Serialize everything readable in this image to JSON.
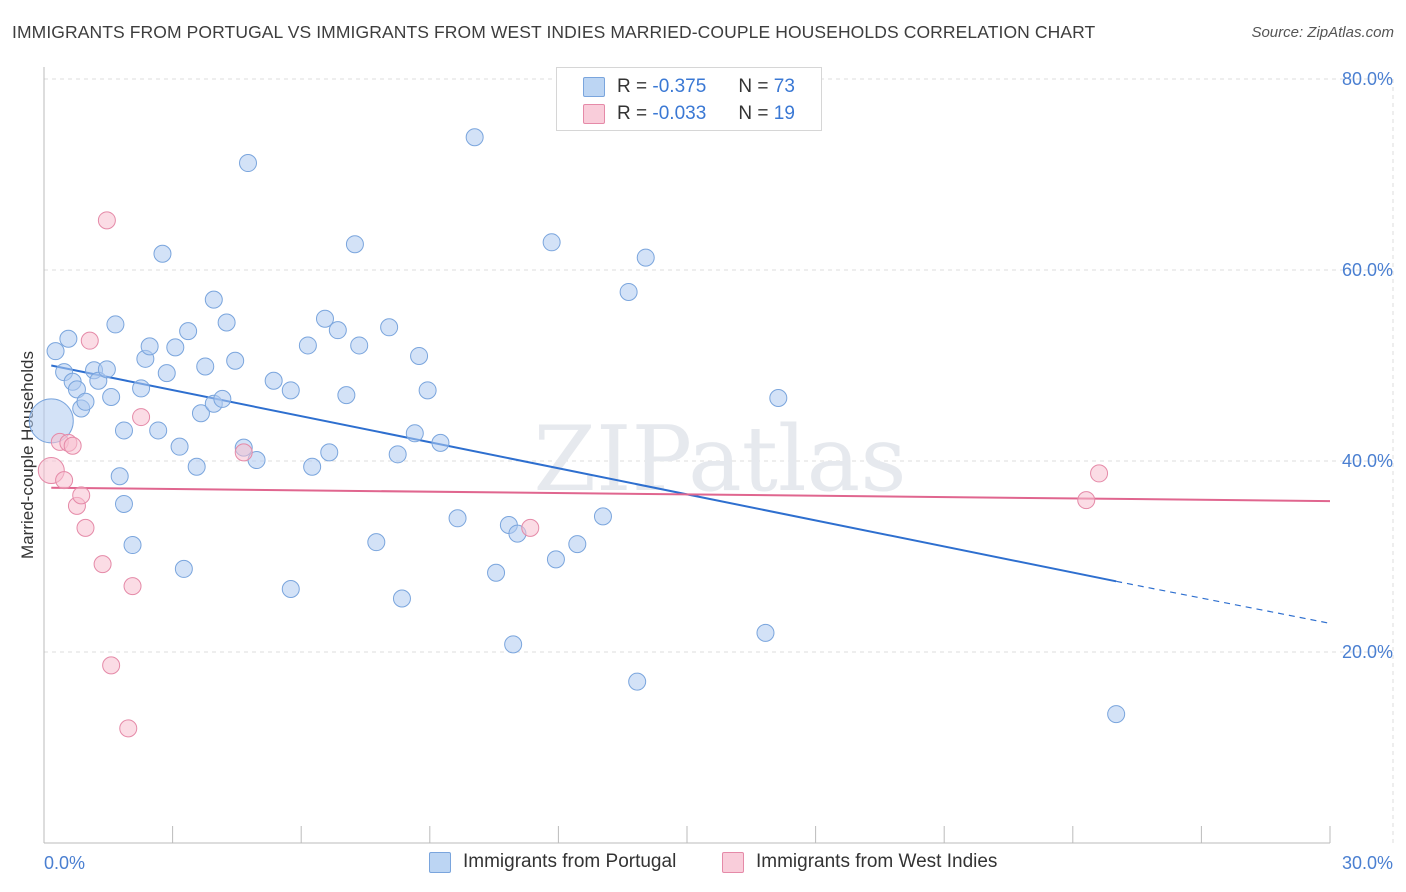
{
  "title": "IMMIGRANTS FROM PORTUGAL VS IMMIGRANTS FROM WEST INDIES MARRIED-COUPLE HOUSEHOLDS CORRELATION CHART",
  "source": "Source: ZipAtlas.com",
  "watermark": "ZIPatlas",
  "legend": {
    "rows": [
      {
        "r_label": "R =",
        "r_value": "-0.375",
        "n_label": "N =",
        "n_value": "73"
      },
      {
        "r_label": "R =",
        "r_value": "-0.033",
        "n_label": "N =",
        "n_value": "19"
      }
    ]
  },
  "bottom_legend": {
    "items": [
      {
        "label": "Immigrants from Portugal"
      },
      {
        "label": "Immigrants from West Indies"
      }
    ]
  },
  "colors": {
    "portugal_fill": "#aecbf0",
    "portugal_stroke": "#7aa5dd",
    "portugal_line": "#2e6fcf",
    "westindies_fill": "#f7bfd0",
    "westindies_stroke": "#e58aa8",
    "westindies_line": "#e0668f",
    "axis_text": "#4a7fd1",
    "grid": "#dddddd"
  },
  "chart_data": {
    "type": "scatter",
    "title": "IMMIGRANTS FROM PORTUGAL VS IMMIGRANTS FROM WEST INDIES MARRIED-COUPLE HOUSEHOLDS CORRELATION CHART",
    "xlabel": "",
    "ylabel": "Married-couple Households",
    "xlim": [
      0,
      30
    ],
    "ylim": [
      0,
      84
    ],
    "x_tick_labels": [
      "0.0%",
      "30.0%"
    ],
    "y_ticks": [
      20,
      40,
      60,
      80
    ],
    "y_tick_labels": [
      "20.0%",
      "40.0%",
      "60.0%",
      "80.0%"
    ],
    "grid": true,
    "legend_position": "top-center",
    "series": [
      {
        "name": "Immigrants from Portugal",
        "r": -0.375,
        "n": 73,
        "trend": {
          "x_start": 0.1,
          "y_start": 50.0,
          "x_solid_end": 25.0,
          "y_solid_end": 27.4,
          "x_end": 30.0,
          "y_end": 23.0
        },
        "points": [
          [
            0.2,
            51.5
          ],
          [
            0.1,
            44.2
          ],
          [
            0.4,
            49.3
          ],
          [
            0.5,
            52.8
          ],
          [
            0.6,
            48.3
          ],
          [
            0.7,
            47.5
          ],
          [
            0.8,
            45.5
          ],
          [
            0.9,
            46.2
          ],
          [
            1.1,
            49.5
          ],
          [
            1.2,
            48.4
          ],
          [
            1.4,
            49.6
          ],
          [
            1.5,
            46.7
          ],
          [
            1.6,
            54.3
          ],
          [
            1.7,
            38.4
          ],
          [
            1.8,
            35.5
          ],
          [
            1.8,
            43.2
          ],
          [
            2.0,
            31.2
          ],
          [
            2.2,
            47.6
          ],
          [
            2.3,
            50.7
          ],
          [
            2.4,
            52.0
          ],
          [
            2.6,
            43.2
          ],
          [
            2.7,
            61.7
          ],
          [
            2.8,
            49.2
          ],
          [
            3.0,
            51.9
          ],
          [
            3.1,
            41.5
          ],
          [
            3.2,
            28.7
          ],
          [
            3.3,
            53.6
          ],
          [
            3.5,
            39.4
          ],
          [
            3.6,
            45.0
          ],
          [
            3.7,
            49.9
          ],
          [
            3.9,
            46.0
          ],
          [
            3.9,
            56.9
          ],
          [
            4.1,
            46.5
          ],
          [
            4.2,
            54.5
          ],
          [
            4.4,
            50.5
          ],
          [
            4.6,
            41.4
          ],
          [
            4.7,
            71.2
          ],
          [
            4.9,
            40.1
          ],
          [
            5.3,
            48.4
          ],
          [
            5.7,
            47.4
          ],
          [
            5.7,
            26.6
          ],
          [
            6.1,
            52.1
          ],
          [
            6.2,
            39.4
          ],
          [
            6.5,
            54.9
          ],
          [
            6.6,
            40.9
          ],
          [
            6.8,
            53.7
          ],
          [
            7.0,
            46.9
          ],
          [
            7.2,
            62.7
          ],
          [
            7.3,
            52.1
          ],
          [
            7.7,
            31.5
          ],
          [
            8.0,
            54.0
          ],
          [
            8.2,
            40.7
          ],
          [
            8.3,
            25.6
          ],
          [
            8.6,
            42.9
          ],
          [
            8.7,
            51.0
          ],
          [
            8.9,
            47.4
          ],
          [
            9.2,
            41.9
          ],
          [
            9.6,
            34.0
          ],
          [
            10.0,
            73.9
          ],
          [
            10.5,
            28.3
          ],
          [
            10.8,
            33.3
          ],
          [
            10.9,
            20.8
          ],
          [
            11.0,
            32.4
          ],
          [
            11.8,
            62.9
          ],
          [
            11.9,
            29.7
          ],
          [
            12.4,
            31.3
          ],
          [
            13.0,
            34.2
          ],
          [
            13.6,
            57.7
          ],
          [
            13.8,
            16.9
          ],
          [
            14.0,
            61.3
          ],
          [
            16.8,
            22.0
          ],
          [
            17.1,
            46.6
          ],
          [
            25.0,
            13.5
          ]
        ]
      },
      {
        "name": "Immigrants from West Indies",
        "r": -0.033,
        "n": 19,
        "trend": {
          "x_start": 0.1,
          "y_start": 37.2,
          "x_end": 30.0,
          "y_end": 35.8
        },
        "points": [
          [
            0.1,
            39.0
          ],
          [
            0.3,
            42.0
          ],
          [
            0.4,
            38.0
          ],
          [
            0.5,
            41.9
          ],
          [
            0.6,
            41.6
          ],
          [
            0.7,
            35.3
          ],
          [
            0.8,
            36.4
          ],
          [
            0.9,
            33.0
          ],
          [
            1.0,
            52.6
          ],
          [
            1.3,
            29.2
          ],
          [
            1.4,
            65.2
          ],
          [
            1.5,
            18.6
          ],
          [
            1.9,
            12.0
          ],
          [
            2.0,
            26.9
          ],
          [
            2.2,
            44.6
          ],
          [
            4.6,
            40.9
          ],
          [
            11.3,
            33.0
          ],
          [
            24.3,
            35.9
          ],
          [
            24.6,
            38.7
          ]
        ]
      }
    ]
  }
}
